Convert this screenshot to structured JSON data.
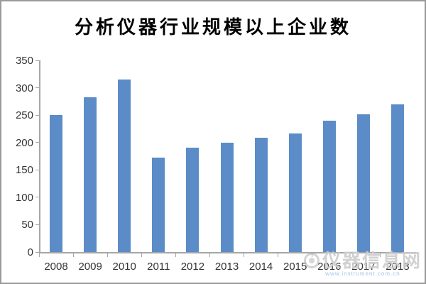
{
  "title": "分析仪器行业规模以上企业数",
  "chart_data": {
    "type": "bar",
    "title": "分析仪器行业规模以上企业数",
    "categories": [
      "2008",
      "2009",
      "2010",
      "2011",
      "2012",
      "2013",
      "2014",
      "2015",
      "2016",
      "2017",
      "2018"
    ],
    "values": [
      250,
      283,
      315,
      172,
      190,
      199,
      209,
      216,
      240,
      252,
      270
    ],
    "xlabel": "",
    "ylabel": "",
    "ylim": [
      0,
      350
    ],
    "yticks": [
      0,
      50,
      100,
      150,
      200,
      250,
      300,
      350
    ],
    "grid": false,
    "legend": false,
    "bar_color": "#5b8cc8",
    "axis_color": "#a6a6a6"
  },
  "watermark": {
    "text": "仪器信息网",
    "subtext": "www.instrument.com.cn"
  }
}
